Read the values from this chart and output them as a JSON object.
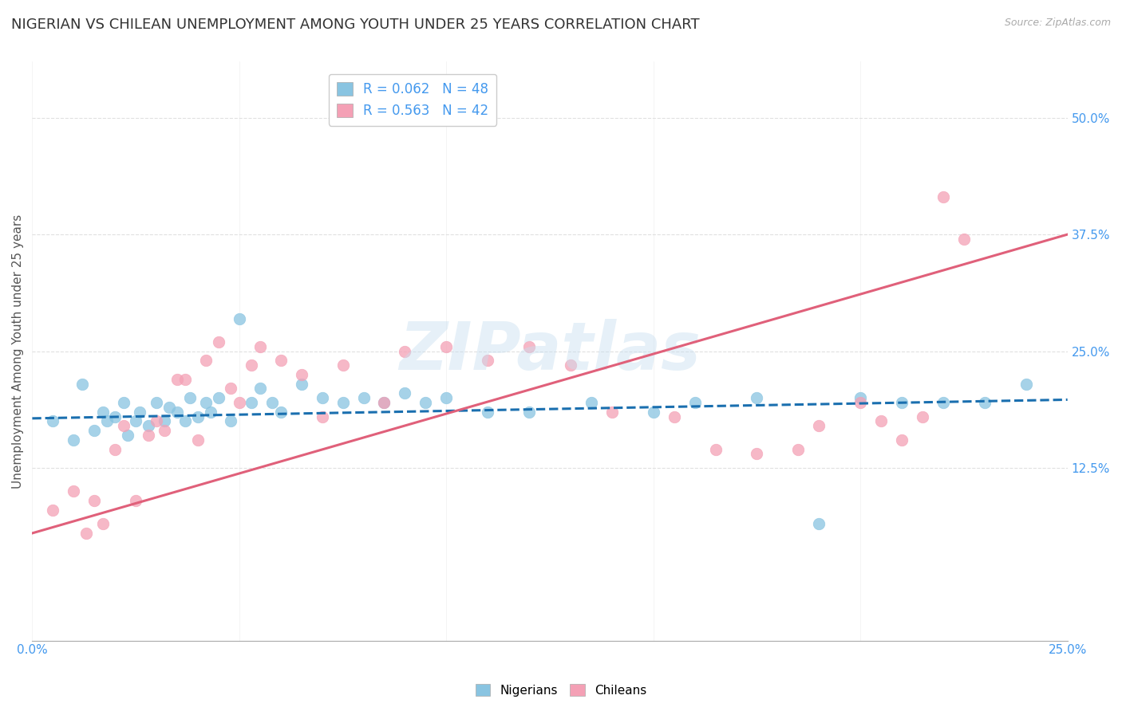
{
  "title": "NIGERIAN VS CHILEAN UNEMPLOYMENT AMONG YOUTH UNDER 25 YEARS CORRELATION CHART",
  "source": "Source: ZipAtlas.com",
  "ylabel": "Unemployment Among Youth under 25 years",
  "yticks_right": [
    "50.0%",
    "37.5%",
    "25.0%",
    "12.5%"
  ],
  "ytick_values_right": [
    0.5,
    0.375,
    0.25,
    0.125
  ],
  "xlim": [
    0.0,
    0.25
  ],
  "ylim": [
    -0.06,
    0.56
  ],
  "legend_entry1": "R = 0.062   N = 48",
  "legend_entry2": "R = 0.563   N = 42",
  "color_nigerian": "#89c4e1",
  "color_chilean": "#f4a0b5",
  "color_nigerian_line": "#1a6faf",
  "color_chilean_line": "#e0607a",
  "watermark": "ZIPatlas",
  "nigerian_x": [
    0.005,
    0.01,
    0.012,
    0.015,
    0.017,
    0.018,
    0.02,
    0.022,
    0.023,
    0.025,
    0.026,
    0.028,
    0.03,
    0.032,
    0.033,
    0.035,
    0.037,
    0.038,
    0.04,
    0.042,
    0.043,
    0.045,
    0.048,
    0.05,
    0.053,
    0.055,
    0.058,
    0.06,
    0.065,
    0.07,
    0.075,
    0.08,
    0.085,
    0.09,
    0.095,
    0.1,
    0.11,
    0.12,
    0.135,
    0.15,
    0.16,
    0.175,
    0.19,
    0.2,
    0.21,
    0.22,
    0.23,
    0.24
  ],
  "nigerian_y": [
    0.175,
    0.155,
    0.215,
    0.165,
    0.185,
    0.175,
    0.18,
    0.195,
    0.16,
    0.175,
    0.185,
    0.17,
    0.195,
    0.175,
    0.19,
    0.185,
    0.175,
    0.2,
    0.18,
    0.195,
    0.185,
    0.2,
    0.175,
    0.285,
    0.195,
    0.21,
    0.195,
    0.185,
    0.215,
    0.2,
    0.195,
    0.2,
    0.195,
    0.205,
    0.195,
    0.2,
    0.185,
    0.185,
    0.195,
    0.185,
    0.195,
    0.2,
    0.065,
    0.2,
    0.195,
    0.195,
    0.195,
    0.215
  ],
  "chilean_x": [
    0.005,
    0.01,
    0.013,
    0.015,
    0.017,
    0.02,
    0.022,
    0.025,
    0.028,
    0.03,
    0.032,
    0.035,
    0.037,
    0.04,
    0.042,
    0.045,
    0.048,
    0.05,
    0.053,
    0.055,
    0.06,
    0.065,
    0.07,
    0.075,
    0.085,
    0.09,
    0.1,
    0.11,
    0.12,
    0.13,
    0.14,
    0.155,
    0.165,
    0.175,
    0.185,
    0.19,
    0.2,
    0.205,
    0.21,
    0.215,
    0.22,
    0.225
  ],
  "chilean_y": [
    0.08,
    0.1,
    0.055,
    0.09,
    0.065,
    0.145,
    0.17,
    0.09,
    0.16,
    0.175,
    0.165,
    0.22,
    0.22,
    0.155,
    0.24,
    0.26,
    0.21,
    0.195,
    0.235,
    0.255,
    0.24,
    0.225,
    0.18,
    0.235,
    0.195,
    0.25,
    0.255,
    0.24,
    0.255,
    0.235,
    0.185,
    0.18,
    0.145,
    0.14,
    0.145,
    0.17,
    0.195,
    0.175,
    0.155,
    0.18,
    0.415,
    0.37
  ],
  "nigerian_line_x": [
    0.0,
    0.25
  ],
  "nigerian_line_y": [
    0.178,
    0.198
  ],
  "chilean_line_x": [
    0.0,
    0.25
  ],
  "chilean_line_y": [
    0.055,
    0.375
  ],
  "bg_color": "#ffffff",
  "grid_color": "#e0e0e0",
  "title_fontsize": 13,
  "axis_fontsize": 11,
  "tick_fontsize": 11
}
